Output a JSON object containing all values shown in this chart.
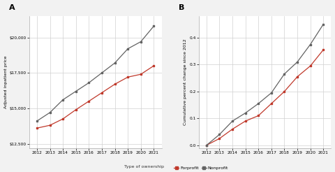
{
  "years": [
    2012,
    2013,
    2014,
    2015,
    2016,
    2017,
    2018,
    2019,
    2020,
    2021
  ],
  "panel_a": {
    "forprofit": [
      13600,
      13800,
      14250,
      14900,
      15500,
      16100,
      16700,
      17200,
      17400,
      18000
    ],
    "nonprofit": [
      14100,
      14700,
      15600,
      16200,
      16800,
      17500,
      18200,
      19200,
      19700,
      20800
    ]
  },
  "panel_b": {
    "forprofit": [
      0.0,
      0.025,
      0.06,
      0.09,
      0.11,
      0.155,
      0.2,
      0.255,
      0.295,
      0.355
    ],
    "nonprofit": [
      0.0,
      0.04,
      0.09,
      0.12,
      0.155,
      0.195,
      0.265,
      0.31,
      0.375,
      0.45
    ]
  },
  "forprofit_color": "#c0392b",
  "nonprofit_color": "#636363",
  "background_color": "#f2f2f2",
  "plot_bg_color": "#ffffff",
  "grid_color": "#d0d0d0",
  "ylabel_a": "Adjusted inpatient price",
  "ylabel_b": "Cumulative percent change since 2012",
  "xlabel": "Type of ownership",
  "legend_forprofit": "Forprofit",
  "legend_nonprofit": "Nonprofit",
  "panel_a_label": "A",
  "panel_b_label": "B",
  "ylim_a": [
    12200,
    21500
  ],
  "yticks_a": [
    12500,
    15000,
    17500,
    20000
  ],
  "ylim_b": [
    -0.01,
    0.48
  ],
  "yticks_b": [
    0.0,
    0.1,
    0.2,
    0.3,
    0.4
  ]
}
